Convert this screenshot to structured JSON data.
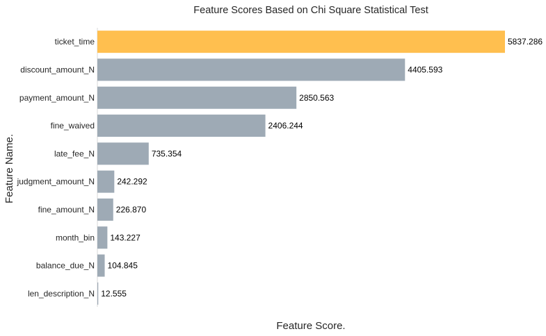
{
  "chart_data": {
    "type": "bar",
    "orientation": "horizontal",
    "title": "Feature Scores Based on Chi Square Statistical Test",
    "xlabel": "Feature Score.",
    "ylabel": "Feature Name.",
    "categories": [
      "ticket_time",
      "discount_amount_N",
      "payment_amount_N",
      "fine_waived",
      "late_fee_N",
      "judgment_amount_N",
      "fine_amount_N",
      "month_bin",
      "balance_due_N",
      "len_description_N"
    ],
    "values": [
      5837.286,
      4405.593,
      2850.563,
      2406.244,
      735.354,
      242.292,
      226.87,
      143.227,
      104.845,
      12.555
    ],
    "value_labels": [
      "5837.286",
      "4405.593",
      "2850.563",
      "2406.244",
      "735.354",
      "242.292",
      "226.870",
      "143.227",
      "104.845",
      "12.555"
    ],
    "xlim": [
      0,
      5837.286
    ],
    "grid": false,
    "highlight_color": "#ffbf4f",
    "bar_color": "#9eaab5"
  }
}
